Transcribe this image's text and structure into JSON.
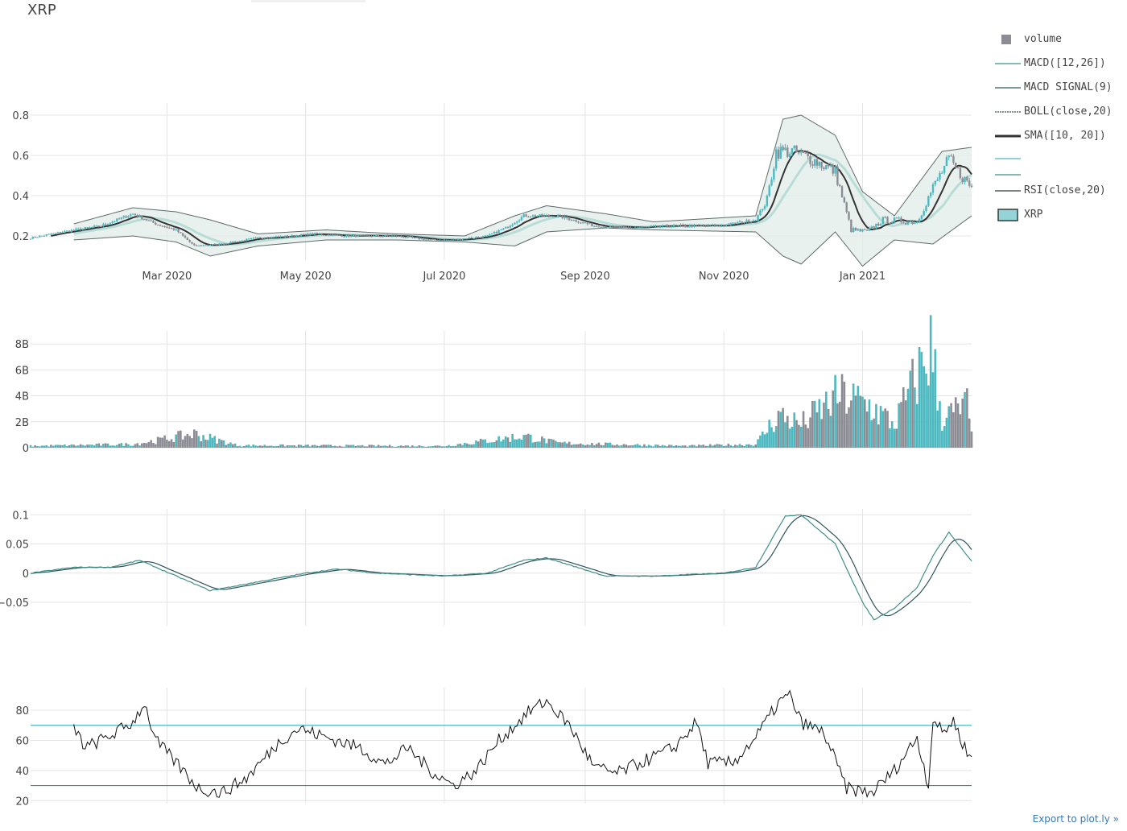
{
  "title": "XRP",
  "export_link": "Export to plot.ly »",
  "colors": {
    "teal": "#4cb8bf",
    "gray": "#8c8c94",
    "dark": "#2e3c3e",
    "macd": "#3f8f86",
    "signal": "#2f5360",
    "sma10": "#333333",
    "sma20": "#b8dcd6",
    "boll_fill": "#e2ece9",
    "boll_line": "#5f6a6a",
    "rsi_hi": "#4cb8bf",
    "rsi_lo": "#3f8f86",
    "grid": "#e4e4e4"
  },
  "legend": [
    {
      "label": "volume",
      "icon": "volume-square-icon"
    },
    {
      "label": "MACD([12,26])",
      "icon": "line-icon"
    },
    {
      "label": "MACD SIGNAL(9)",
      "icon": "line-icon"
    },
    {
      "label": "BOLL(close,20)",
      "icon": "dotted-line-icon"
    },
    {
      "label": "SMA([10, 20])",
      "icon": "thick-line-icon"
    },
    {
      "label": "",
      "icon": "line-icon"
    },
    {
      "label": "",
      "icon": "line-icon"
    },
    {
      "label": "RSI(close,20)",
      "icon": "line-icon"
    },
    {
      "label": "XRP",
      "icon": "candle-icon"
    }
  ],
  "chart_data": [
    {
      "type": "candlestick",
      "title": "XRP",
      "x_range": [
        "2020-01-01",
        "2021-02-18"
      ],
      "x_ticks": [
        "Mar 2020",
        "May 2020",
        "Jul 2020",
        "Sep 2020",
        "Nov 2020",
        "Jan 2021"
      ],
      "x_tick_dates": [
        "2020-03-01",
        "2020-05-01",
        "2020-07-01",
        "2020-09-01",
        "2020-11-01",
        "2021-01-01"
      ],
      "y_ticks": [
        "0.2",
        "0.4",
        "0.6",
        "0.8"
      ],
      "ylim": [
        0.08,
        0.86
      ],
      "grid": true,
      "legend_position": "right",
      "close_keypoints": [
        [
          "2020-01-01",
          0.19
        ],
        [
          "2020-01-15",
          0.22
        ],
        [
          "2020-02-01",
          0.25
        ],
        [
          "2020-02-15",
          0.31
        ],
        [
          "2020-02-25",
          0.26
        ],
        [
          "2020-03-05",
          0.23
        ],
        [
          "2020-03-13",
          0.15
        ],
        [
          "2020-03-25",
          0.16
        ],
        [
          "2020-04-10",
          0.19
        ],
        [
          "2020-04-25",
          0.2
        ],
        [
          "2020-05-05",
          0.21
        ],
        [
          "2020-05-20",
          0.2
        ],
        [
          "2020-06-10",
          0.2
        ],
        [
          "2020-06-25",
          0.18
        ],
        [
          "2020-07-05",
          0.18
        ],
        [
          "2020-07-20",
          0.2
        ],
        [
          "2020-07-28",
          0.24
        ],
        [
          "2020-08-05",
          0.3
        ],
        [
          "2020-08-20",
          0.3
        ],
        [
          "2020-09-05",
          0.25
        ],
        [
          "2020-09-20",
          0.24
        ],
        [
          "2020-10-10",
          0.25
        ],
        [
          "2020-10-30",
          0.25
        ],
        [
          "2020-11-15",
          0.28
        ],
        [
          "2020-11-20",
          0.38
        ],
        [
          "2020-11-24",
          0.62
        ],
        [
          "2020-12-01",
          0.62
        ],
        [
          "2020-12-10",
          0.58
        ],
        [
          "2020-12-20",
          0.52
        ],
        [
          "2020-12-27",
          0.23
        ],
        [
          "2021-01-03",
          0.22
        ],
        [
          "2021-01-10",
          0.28
        ],
        [
          "2021-01-25",
          0.27
        ],
        [
          "2021-02-01",
          0.44
        ],
        [
          "2021-02-08",
          0.58
        ],
        [
          "2021-02-12",
          0.52
        ],
        [
          "2021-02-18",
          0.44
        ]
      ],
      "bollinger": {
        "upper_keypoints": [
          [
            "2020-01-20",
            0.26
          ],
          [
            "2020-02-15",
            0.34
          ],
          [
            "2020-03-05",
            0.32
          ],
          [
            "2020-03-20",
            0.28
          ],
          [
            "2020-04-10",
            0.21
          ],
          [
            "2020-05-10",
            0.23
          ],
          [
            "2020-06-10",
            0.21
          ],
          [
            "2020-07-10",
            0.2
          ],
          [
            "2020-08-01",
            0.3
          ],
          [
            "2020-08-15",
            0.35
          ],
          [
            "2020-09-10",
            0.31
          ],
          [
            "2020-10-01",
            0.27
          ],
          [
            "2020-11-15",
            0.3
          ],
          [
            "2020-11-27",
            0.78
          ],
          [
            "2020-12-05",
            0.8
          ],
          [
            "2020-12-20",
            0.7
          ],
          [
            "2021-01-01",
            0.42
          ],
          [
            "2021-01-15",
            0.3
          ],
          [
            "2021-02-05",
            0.62
          ],
          [
            "2021-02-18",
            0.64
          ]
        ],
        "lower_keypoints": [
          [
            "2020-01-20",
            0.18
          ],
          [
            "2020-02-15",
            0.2
          ],
          [
            "2020-03-05",
            0.17
          ],
          [
            "2020-03-20",
            0.1
          ],
          [
            "2020-04-10",
            0.15
          ],
          [
            "2020-05-10",
            0.18
          ],
          [
            "2020-06-10",
            0.18
          ],
          [
            "2020-07-10",
            0.17
          ],
          [
            "2020-08-01",
            0.15
          ],
          [
            "2020-08-15",
            0.22
          ],
          [
            "2020-09-10",
            0.24
          ],
          [
            "2020-10-01",
            0.23
          ],
          [
            "2020-11-15",
            0.22
          ],
          [
            "2020-11-27",
            0.1
          ],
          [
            "2020-12-05",
            0.06
          ],
          [
            "2020-12-20",
            0.22
          ],
          [
            "2021-01-01",
            0.05
          ],
          [
            "2021-01-15",
            0.18
          ],
          [
            "2021-02-01",
            0.16
          ],
          [
            "2021-02-18",
            0.3
          ]
        ]
      }
    },
    {
      "type": "bar",
      "series": [
        {
          "name": "volume"
        }
      ],
      "y_ticks": [
        "0",
        "2B",
        "4B",
        "6B",
        "8B"
      ],
      "ylim": [
        0,
        9000000000
      ],
      "volume_keypoints": [
        [
          "2020-01-01",
          150000000.0
        ],
        [
          "2020-02-15",
          300000000.0
        ],
        [
          "2020-02-25",
          600000000.0
        ],
        [
          "2020-03-13",
          1200000000.0
        ],
        [
          "2020-04-01",
          200000000.0
        ],
        [
          "2020-07-01",
          150000000.0
        ],
        [
          "2020-08-05",
          1000000000.0
        ],
        [
          "2020-08-20",
          400000000.0
        ],
        [
          "2020-10-15",
          150000000.0
        ],
        [
          "2020-11-15",
          300000000.0
        ],
        [
          "2020-11-25",
          2800000000.0
        ],
        [
          "2020-12-05",
          2000000000.0
        ],
        [
          "2020-12-22",
          4500000000.0
        ],
        [
          "2020-12-28",
          4100000000.0
        ],
        [
          "2021-01-05",
          3500000000.0
        ],
        [
          "2021-01-15",
          2000000000.0
        ],
        [
          "2021-01-31",
          8600000000.0
        ],
        [
          "2021-02-05",
          2500000000.0
        ],
        [
          "2021-02-16",
          3600000000.0
        ],
        [
          "2021-02-18",
          1000000000.0
        ]
      ]
    },
    {
      "type": "line",
      "series": [
        {
          "name": "MACD([12,26])"
        },
        {
          "name": "MACD SIGNAL(9)"
        }
      ],
      "y_ticks": [
        "0.1",
        "0.05",
        "0",
        "−0.05"
      ],
      "ylim": [
        -0.09,
        0.11
      ],
      "macd_keypoints": [
        [
          "2020-01-01",
          0.0
        ],
        [
          "2020-01-20",
          0.01
        ],
        [
          "2020-02-05",
          0.01
        ],
        [
          "2020-02-18",
          0.022
        ],
        [
          "2020-03-05",
          -0.005
        ],
        [
          "2020-03-20",
          -0.03
        ],
        [
          "2020-04-10",
          -0.015
        ],
        [
          "2020-05-01",
          0.0
        ],
        [
          "2020-05-15",
          0.007
        ],
        [
          "2020-06-01",
          0.0
        ],
        [
          "2020-07-01",
          -0.005
        ],
        [
          "2020-07-20",
          0.0
        ],
        [
          "2020-08-05",
          0.022
        ],
        [
          "2020-08-15",
          0.026
        ],
        [
          "2020-09-10",
          -0.005
        ],
        [
          "2020-10-01",
          -0.005
        ],
        [
          "2020-11-01",
          0.0
        ],
        [
          "2020-11-15",
          0.01
        ],
        [
          "2020-11-28",
          0.098
        ],
        [
          "2020-12-05",
          0.1
        ],
        [
          "2020-12-20",
          0.05
        ],
        [
          "2021-01-01",
          -0.05
        ],
        [
          "2021-01-06",
          -0.08
        ],
        [
          "2021-01-15",
          -0.06
        ],
        [
          "2021-01-25",
          -0.025
        ],
        [
          "2021-02-01",
          0.03
        ],
        [
          "2021-02-08",
          0.07
        ],
        [
          "2021-02-18",
          0.02
        ]
      ]
    },
    {
      "type": "line",
      "series": [
        {
          "name": "RSI(close,20)"
        }
      ],
      "y_ticks": [
        "20",
        "40",
        "60",
        "80"
      ],
      "ylim": [
        18,
        95
      ],
      "thresholds": [
        70,
        30
      ],
      "rsi_keypoints": [
        [
          "2020-01-20",
          69
        ],
        [
          "2020-01-25",
          55
        ],
        [
          "2020-02-05",
          63
        ],
        [
          "2020-02-15",
          72
        ],
        [
          "2020-02-20",
          85
        ],
        [
          "2020-02-25",
          60
        ],
        [
          "2020-03-08",
          40
        ],
        [
          "2020-03-15",
          28
        ],
        [
          "2020-03-25",
          25
        ],
        [
          "2020-04-05",
          35
        ],
        [
          "2020-04-20",
          60
        ],
        [
          "2020-04-28",
          68
        ],
        [
          "2020-05-10",
          62
        ],
        [
          "2020-05-25",
          55
        ],
        [
          "2020-06-05",
          44
        ],
        [
          "2020-06-15",
          55
        ],
        [
          "2020-06-25",
          40
        ],
        [
          "2020-07-05",
          30
        ],
        [
          "2020-07-15",
          40
        ],
        [
          "2020-07-25",
          60
        ],
        [
          "2020-08-08",
          80
        ],
        [
          "2020-08-15",
          86
        ],
        [
          "2020-08-25",
          70
        ],
        [
          "2020-09-05",
          42
        ],
        [
          "2020-09-15",
          38
        ],
        [
          "2020-09-25",
          45
        ],
        [
          "2020-10-10",
          55
        ],
        [
          "2020-10-20",
          72
        ],
        [
          "2020-10-25",
          45
        ],
        [
          "2020-11-05",
          45
        ],
        [
          "2020-11-15",
          62
        ],
        [
          "2020-11-25",
          85
        ],
        [
          "2020-11-30",
          90
        ],
        [
          "2020-12-05",
          72
        ],
        [
          "2020-12-15",
          65
        ],
        [
          "2020-12-25",
          28
        ],
        [
          "2021-01-05",
          25
        ],
        [
          "2021-01-15",
          40
        ],
        [
          "2021-01-25",
          62
        ],
        [
          "2021-01-30",
          30
        ],
        [
          "2021-02-01",
          75
        ],
        [
          "2021-02-05",
          65
        ],
        [
          "2021-02-10",
          73
        ],
        [
          "2021-02-15",
          55
        ],
        [
          "2021-02-18",
          48
        ]
      ]
    }
  ]
}
